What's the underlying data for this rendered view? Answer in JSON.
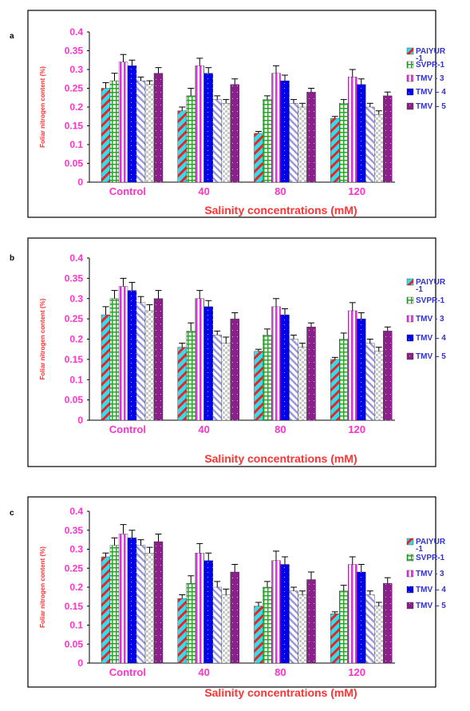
{
  "chart_data": [
    {
      "type": "bar",
      "panel_label": "a",
      "ylabel": "Foliar nitrogen content (%)",
      "xlabel": "Salinity concentrations (mM)",
      "categories": [
        "Control",
        "40",
        "80",
        "120"
      ],
      "ylim": [
        0,
        0.4
      ],
      "yticks": [
        "0",
        "0.05",
        "0.1",
        "0.15",
        "0.2",
        "0.25",
        "0.3",
        "0.35",
        "0.4"
      ],
      "legend": [
        "PAIYUR -1",
        "SVPR-1",
        "TMV - 3",
        "TMV – 4",
        "TMV – 5"
      ],
      "series": [
        {
          "name": "PAIYUR -1",
          "values": [
            0.25,
            0.19,
            0.13,
            0.17
          ],
          "errors": [
            0.015,
            0.01,
            0.005,
            0.005
          ]
        },
        {
          "name": "SVPR-1",
          "values": [
            0.27,
            0.23,
            0.22,
            0.21
          ],
          "errors": [
            0.02,
            0.02,
            0.01,
            0.01
          ]
        },
        {
          "name": "TMV - 3",
          "values": [
            0.32,
            0.31,
            0.29,
            0.28
          ],
          "errors": [
            0.02,
            0.02,
            0.02,
            0.02
          ]
        },
        {
          "name": "TMV – 4",
          "values": [
            0.31,
            0.29,
            0.27,
            0.26
          ],
          "errors": [
            0.015,
            0.015,
            0.015,
            0.015
          ]
        },
        {
          "name": "TMV – 5 a",
          "values": [
            0.27,
            0.22,
            0.21,
            0.2
          ],
          "errors": [
            0.01,
            0.01,
            0.01,
            0.01
          ]
        },
        {
          "name": "TMV – 5 b",
          "values": [
            0.26,
            0.21,
            0.2,
            0.18
          ],
          "errors": [
            0.01,
            0.01,
            0.01,
            0.01
          ]
        },
        {
          "name": "TMV – 5 c",
          "values": [
            0.29,
            0.26,
            0.24,
            0.23
          ],
          "errors": [
            0.015,
            0.015,
            0.01,
            0.01
          ]
        }
      ]
    },
    {
      "type": "bar",
      "panel_label": "b",
      "ylabel": "Foliar nitrogen content (%)",
      "xlabel": "Salinity concentrations (mM)",
      "categories": [
        "Control",
        "40",
        "80",
        "120"
      ],
      "ylim": [
        0,
        0.4
      ],
      "yticks": [
        "0",
        "0.05",
        "0.1",
        "0.15",
        "0.2",
        "0.25",
        "0.3",
        "0.35",
        "0.4"
      ],
      "legend": [
        "PAIYUR -1",
        "SVPR-1",
        "TMV - 3",
        "TMV – 4",
        "TMV – 5"
      ],
      "series": [
        {
          "name": "PAIYUR -1",
          "values": [
            0.26,
            0.18,
            0.17,
            0.15
          ],
          "errors": [
            0.02,
            0.01,
            0.005,
            0.005
          ]
        },
        {
          "name": "SVPR-1",
          "values": [
            0.3,
            0.22,
            0.21,
            0.2
          ],
          "errors": [
            0.02,
            0.02,
            0.015,
            0.015
          ]
        },
        {
          "name": "TMV - 3",
          "values": [
            0.33,
            0.3,
            0.28,
            0.27
          ],
          "errors": [
            0.02,
            0.02,
            0.02,
            0.02
          ]
        },
        {
          "name": "TMV – 4",
          "values": [
            0.32,
            0.28,
            0.26,
            0.25
          ],
          "errors": [
            0.02,
            0.015,
            0.015,
            0.015
          ]
        },
        {
          "name": "TMV – 5 a",
          "values": [
            0.29,
            0.21,
            0.2,
            0.19
          ],
          "errors": [
            0.015,
            0.01,
            0.01,
            0.01
          ]
        },
        {
          "name": "TMV – 5 b",
          "values": [
            0.27,
            0.19,
            0.18,
            0.17
          ],
          "errors": [
            0.015,
            0.015,
            0.01,
            0.01
          ]
        },
        {
          "name": "TMV – 5 c",
          "values": [
            0.3,
            0.25,
            0.23,
            0.22
          ],
          "errors": [
            0.02,
            0.015,
            0.01,
            0.01
          ]
        }
      ]
    },
    {
      "type": "bar",
      "panel_label": "c",
      "ylabel": "Foliar nitrogen content (%)",
      "xlabel": "Salinity concentrations (mM)",
      "categories": [
        "Control",
        "40",
        "80",
        "120"
      ],
      "ylim": [
        0,
        0.4
      ],
      "yticks": [
        "0",
        "0.05",
        "0.1",
        "0.15",
        "0.2",
        "0.25",
        "0.3",
        "0.35",
        "0.4"
      ],
      "legend": [
        "PAIYUR -1",
        "SVPR-1",
        "TMV - 3",
        "TMV – 4",
        "TMV – 5"
      ],
      "series": [
        {
          "name": "PAIYUR -1",
          "values": [
            0.28,
            0.17,
            0.15,
            0.13
          ],
          "errors": [
            0.01,
            0.01,
            0.01,
            0.005
          ]
        },
        {
          "name": "SVPR-1",
          "values": [
            0.31,
            0.21,
            0.2,
            0.19
          ],
          "errors": [
            0.02,
            0.02,
            0.015,
            0.015
          ]
        },
        {
          "name": "TMV - 3",
          "values": [
            0.34,
            0.29,
            0.27,
            0.26
          ],
          "errors": [
            0.025,
            0.025,
            0.025,
            0.02
          ]
        },
        {
          "name": "TMV – 4",
          "values": [
            0.33,
            0.27,
            0.26,
            0.24
          ],
          "errors": [
            0.02,
            0.02,
            0.02,
            0.02
          ]
        },
        {
          "name": "TMV – 5 a",
          "values": [
            0.31,
            0.2,
            0.19,
            0.18
          ],
          "errors": [
            0.015,
            0.015,
            0.01,
            0.01
          ]
        },
        {
          "name": "TMV – 5 b",
          "values": [
            0.29,
            0.18,
            0.18,
            0.15
          ],
          "errors": [
            0.015,
            0.015,
            0.01,
            0.01
          ]
        },
        {
          "name": "TMV – 5 c",
          "values": [
            0.32,
            0.24,
            0.22,
            0.21
          ],
          "errors": [
            0.02,
            0.02,
            0.02,
            0.015
          ]
        }
      ]
    }
  ],
  "colors": {
    "axis_text": "#ff33cc",
    "title_text": "#ff3333",
    "legend_text": "#3333cc",
    "cyan": "#33ddee",
    "red": "#ee2222",
    "green": "#22aa22",
    "magenta": "#dd33dd",
    "blue": "#0000ee",
    "purple": "#882288",
    "lavender": "#9999dd",
    "gray": "#c8c8c8"
  }
}
